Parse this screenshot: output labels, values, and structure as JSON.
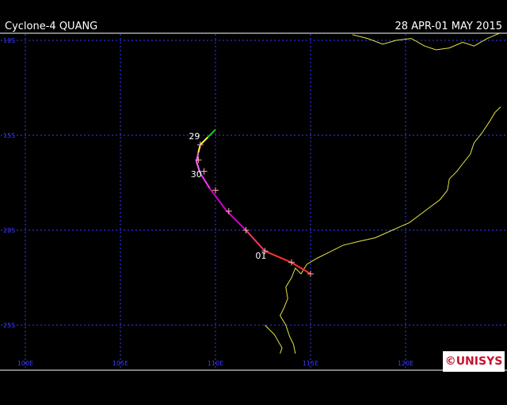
{
  "header": {
    "title": "Cyclone-4 QUANG",
    "date_range": "28 APR-01 MAY 2015"
  },
  "map": {
    "lat_labels": [
      "10S",
      "15S",
      "20S",
      "25S"
    ],
    "lon_labels": [
      "100E",
      "105E",
      "110E",
      "115E",
      "120E"
    ],
    "lon_range": [
      100,
      125
    ],
    "lat_range": [
      -9.5,
      -26.5
    ],
    "grid_color": "#3a3aff",
    "coast_color": "#e6e640",
    "track": [
      {
        "lon": 110.0,
        "lat": -14.7,
        "color": "#22cc22"
      },
      {
        "lon": 109.6,
        "lat": -15.1,
        "color": "#22cc22"
      },
      {
        "lon": 109.2,
        "lat": -15.5,
        "color": "#ffff33"
      },
      {
        "lon": 109.1,
        "lat": -15.9,
        "color": "#ffff33"
      },
      {
        "lon": 109.0,
        "lat": -16.4,
        "color": "#ff66ff"
      },
      {
        "lon": 109.2,
        "lat": -17.0,
        "color": "#ff66ff"
      },
      {
        "lon": 109.7,
        "lat": -17.8,
        "color": "#ff33ff"
      },
      {
        "lon": 110.6,
        "lat": -19.0,
        "color": "#cc00cc"
      },
      {
        "lon": 111.6,
        "lat": -20.0,
        "color": "#cc00cc"
      },
      {
        "lon": 112.6,
        "lat": -21.1,
        "color": "#ff3366"
      },
      {
        "lon": 114.0,
        "lat": -21.7,
        "color": "#ff3333"
      },
      {
        "lon": 115.0,
        "lat": -22.3,
        "color": "#ff3333"
      }
    ],
    "markers": [
      {
        "lon": 109.2,
        "lat": -15.5
      },
      {
        "lon": 109.1,
        "lat": -16.3
      },
      {
        "lon": 109.4,
        "lat": -16.9
      },
      {
        "lon": 110.0,
        "lat": -17.9
      },
      {
        "lon": 110.7,
        "lat": -19.0
      },
      {
        "lon": 111.6,
        "lat": -20.0
      },
      {
        "lon": 112.6,
        "lat": -21.1
      },
      {
        "lon": 114.0,
        "lat": -21.7
      },
      {
        "lon": 115.0,
        "lat": -22.3
      }
    ],
    "day_labels": [
      {
        "text": "29",
        "lon": 108.6,
        "lat": -15.2
      },
      {
        "text": "30",
        "lon": 108.7,
        "lat": -17.2
      },
      {
        "text": "01",
        "lon": 112.1,
        "lat": -21.5
      }
    ],
    "coastline": [
      [
        125,
        -13.5
      ],
      [
        124.7,
        -13.8
      ],
      [
        124.4,
        -14.3
      ],
      [
        124.0,
        -14.9
      ],
      [
        123.6,
        -15.4
      ],
      [
        123.4,
        -16.0
      ],
      [
        123.0,
        -16.5
      ],
      [
        122.7,
        -16.9
      ],
      [
        122.3,
        -17.3
      ],
      [
        122.2,
        -17.9
      ],
      [
        121.8,
        -18.4
      ],
      [
        121.0,
        -19.0
      ],
      [
        120.2,
        -19.6
      ],
      [
        119.3,
        -20.0
      ],
      [
        118.4,
        -20.4
      ],
      [
        117.5,
        -20.6
      ],
      [
        116.7,
        -20.8
      ],
      [
        115.9,
        -21.2
      ],
      [
        115.3,
        -21.5
      ],
      [
        114.8,
        -21.8
      ],
      [
        114.5,
        -22.3
      ],
      [
        114.2,
        -22.0
      ],
      [
        114.0,
        -22.5
      ],
      [
        113.7,
        -23.0
      ],
      [
        113.8,
        -23.6
      ],
      [
        113.6,
        -24.1
      ],
      [
        113.4,
        -24.5
      ],
      [
        113.7,
        -25.0
      ],
      [
        113.9,
        -25.6
      ],
      [
        114.1,
        -26.0
      ],
      [
        114.2,
        -26.5
      ]
    ],
    "coastline_nw": [
      [
        117.2,
        -9.7
      ],
      [
        118.0,
        -9.9
      ],
      [
        118.8,
        -10.2
      ],
      [
        119.5,
        -10.0
      ],
      [
        120.3,
        -9.9
      ],
      [
        121.0,
        -10.3
      ],
      [
        121.6,
        -10.5
      ],
      [
        122.3,
        -10.4
      ],
      [
        123.0,
        -10.1
      ],
      [
        123.6,
        -10.3
      ],
      [
        124.3,
        -9.9
      ],
      [
        125,
        -9.6
      ]
    ],
    "coastline_sw": [
      [
        112.6,
        -25.0
      ],
      [
        113.1,
        -25.5
      ],
      [
        113.5,
        -26.2
      ],
      [
        113.4,
        -26.5
      ]
    ]
  },
  "logo": {
    "text": "©UNISYS",
    "background": "#ffffff",
    "text_color": "#c8102e"
  }
}
